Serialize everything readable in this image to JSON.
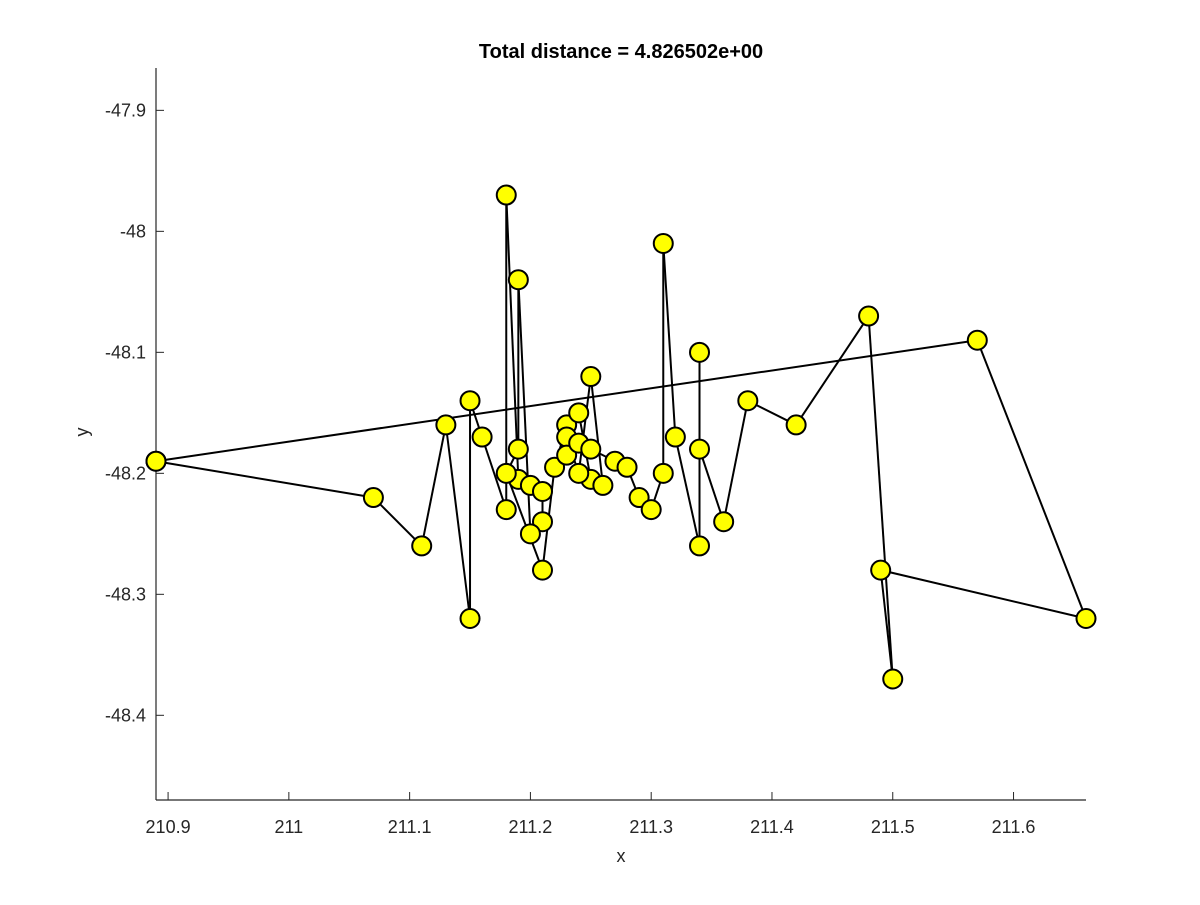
{
  "chart_data": {
    "type": "line",
    "title": "Total distance =  4.826502e+00",
    "xlabel": "x",
    "ylabel": "y",
    "xlim": [
      210.89,
      211.66
    ],
    "ylim": [
      -48.47,
      -47.865
    ],
    "x_ticks": [
      210.9,
      211.0,
      211.1,
      211.2,
      211.3,
      211.4,
      211.5,
      211.6
    ],
    "x_tick_labels": [
      "210.9",
      "211",
      "211.1",
      "211.2",
      "211.3",
      "211.4",
      "211.5",
      "211.6"
    ],
    "y_ticks": [
      -47.9,
      -48.0,
      -48.1,
      -48.2,
      -48.3,
      -48.4
    ],
    "y_tick_labels": [
      "-47.9",
      "-48",
      "-48.1",
      "-48.2",
      "-48.3",
      "-48.4"
    ],
    "grid": false,
    "marker": "circle",
    "marker_color": "#ffff00",
    "line_color": "#000000",
    "series": [
      {
        "x": [
          210.89,
          211.07,
          211.11,
          211.13,
          211.15,
          211.15,
          211.16,
          211.18,
          211.18,
          211.19,
          211.2,
          211.21,
          211.21,
          211.2,
          211.19,
          211.19,
          211.18,
          211.21,
          211.22,
          211.23,
          211.24,
          211.25,
          211.26,
          211.25,
          211.24,
          211.23,
          211.23,
          211.24,
          211.25,
          211.27,
          211.28,
          211.29,
          211.3,
          211.31,
          211.31,
          211.32,
          211.34,
          211.34,
          211.34,
          211.36,
          211.38,
          211.42,
          211.48,
          211.5,
          211.49,
          211.66,
          211.57,
          210.89
        ],
        "y": [
          -48.19,
          -48.22,
          -48.26,
          -48.16,
          -48.32,
          -48.14,
          -48.17,
          -48.23,
          -47.97,
          -48.205,
          -48.21,
          -48.215,
          -48.24,
          -48.25,
          -48.04,
          -48.18,
          -48.2,
          -48.28,
          -48.195,
          -48.16,
          -48.15,
          -48.205,
          -48.21,
          -48.12,
          -48.2,
          -48.17,
          -48.185,
          -48.175,
          -48.18,
          -48.19,
          -48.195,
          -48.22,
          -48.23,
          -48.2,
          -48.01,
          -48.17,
          -48.26,
          -48.1,
          -48.18,
          -48.24,
          -48.14,
          -48.16,
          -48.07,
          -48.37,
          -48.28,
          -48.32,
          -48.09,
          -48.19
        ]
      }
    ]
  }
}
